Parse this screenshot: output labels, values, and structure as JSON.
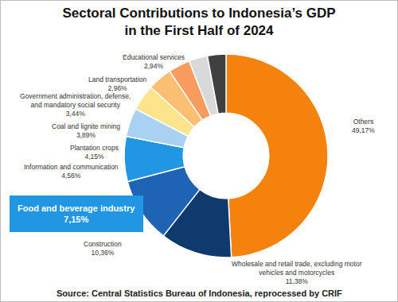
{
  "chart_data": {
    "type": "pie",
    "title": "Sectoral Contributions to Indonesia’s GDP in the First Half of 2024",
    "categories": [
      "Others",
      "Wholesale and retail trade, excluding motor vehicles and motorcycles",
      "Construction",
      "Food and beverage industry",
      "Information and communication",
      "Plantation crops",
      "Coal and lignite mining",
      "Government administration, defense, and mandatory social security",
      "Land transportation",
      "Educational services"
    ],
    "values": [
      49.17,
      11.38,
      10.36,
      7.15,
      4.56,
      4.15,
      3.89,
      3.44,
      2.96,
      2.94
    ],
    "value_labels": [
      "49,17%",
      "11,38%",
      "10,36%",
      "7,15%",
      "4,56%",
      "4,15%",
      "3,89%",
      "3,44%",
      "2,96%",
      "2,94%"
    ],
    "colors": [
      "#F5820D",
      "#0E3A6E",
      "#1F63B5",
      "#2196E3",
      "#A9D1F2",
      "#FBE48C",
      "#FBBE72",
      "#F79B5F",
      "#D9D9D9",
      "#404040"
    ],
    "data_labels": true,
    "source": "Source: Central Statistics Bureau of Indonesia, reprocessed by CRIF"
  }
}
